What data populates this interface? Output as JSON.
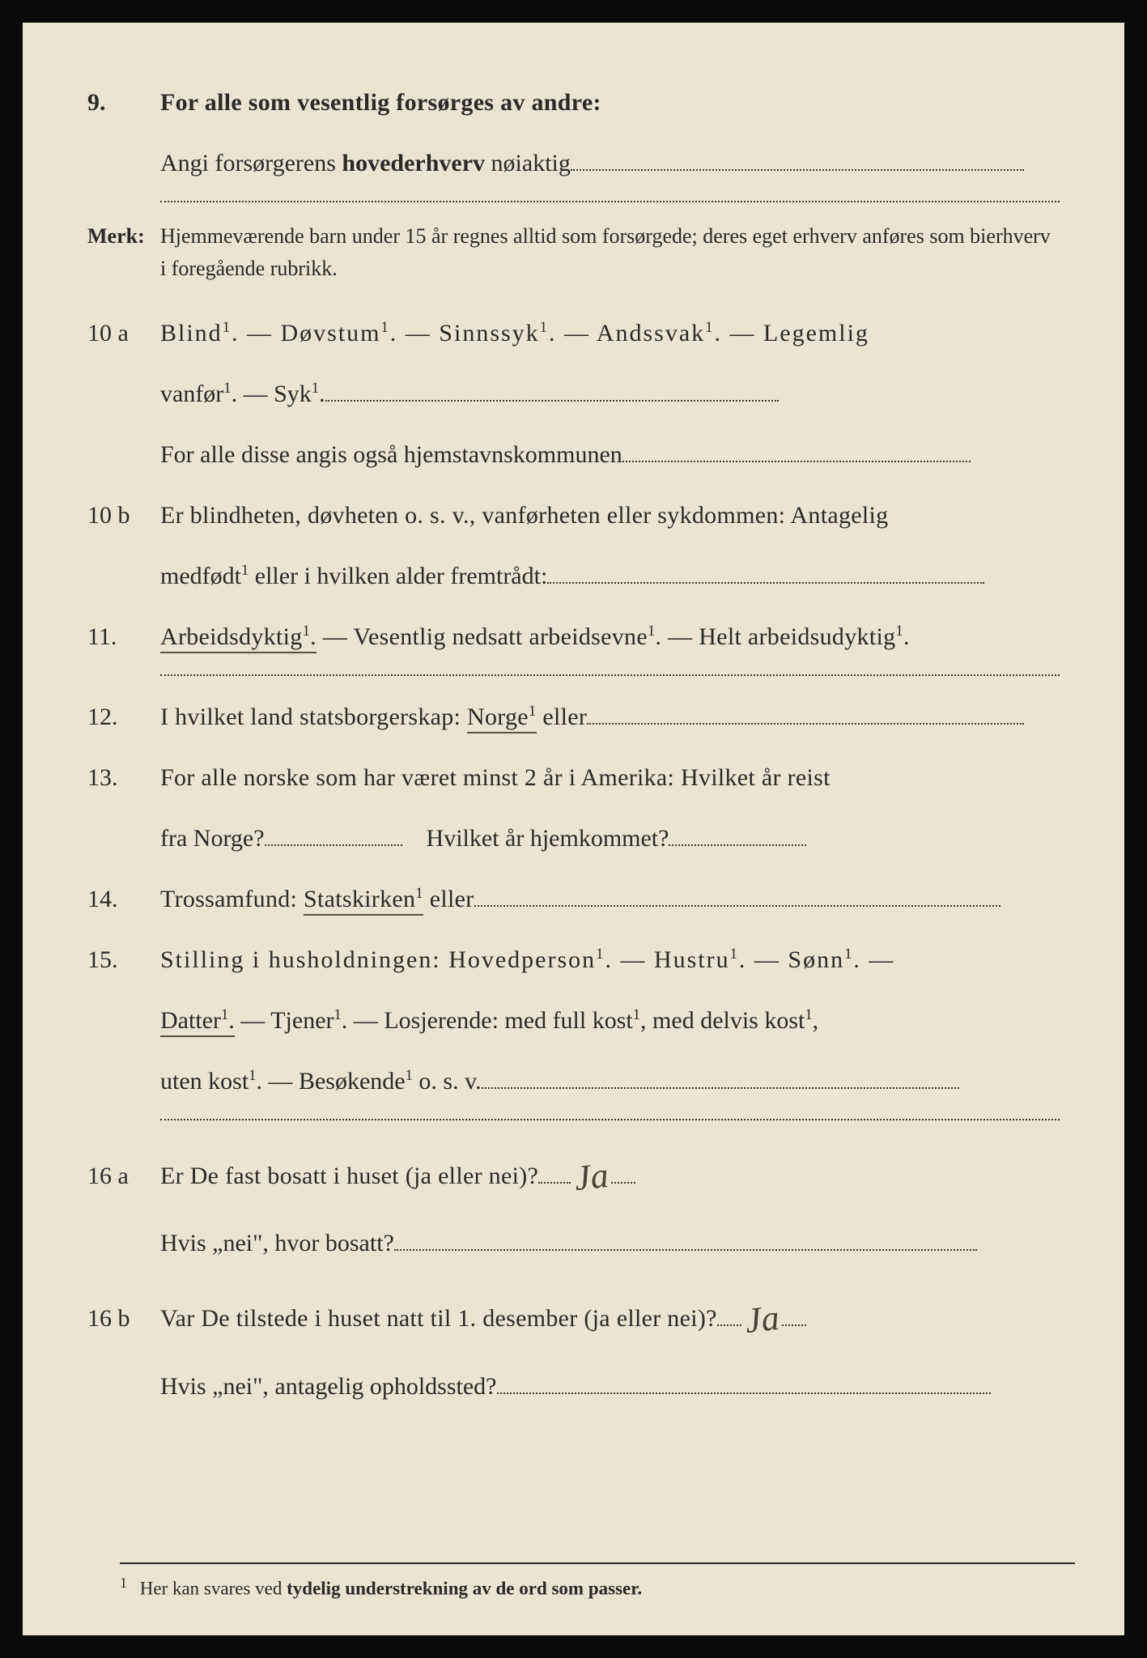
{
  "colors": {
    "paper": "#eae4d4",
    "ink": "#2a2a28",
    "border": "#0a0a0a",
    "hand": "#4a433a",
    "dotted": "#3a3a36"
  },
  "typography": {
    "body_pt": 30,
    "merk_pt": 26,
    "footnote_pt": 23,
    "family": "serif"
  },
  "q9": {
    "num": "9.",
    "line1": "For alle som vesentlig forsørges av andre:",
    "line2_a": "Angi forsørgerens ",
    "line2_b": "hovederhverv",
    "line2_c": " nøiaktig"
  },
  "merk": {
    "label": "Merk:",
    "text": "Hjemmeværende barn under 15 år regnes alltid som forsørgede; deres eget erhverv anføres som bierhverv i foregående rubrikk."
  },
  "q10a": {
    "num": "10 a",
    "opts": "Blind¹.  —  Døvstum¹.  —  Sinnssyk¹.  —  Andssvak¹.  —  Legemlig",
    "opts2_a": "vanfør¹.",
    "opts2_b": " — Syk¹.",
    "line3": "For alle disse angis også hjemstavnskommunen"
  },
  "q10b": {
    "num": "10 b",
    "l1": "Er blindheten, døvheten o. s. v., vanførheten eller sykdommen: Antagelig",
    "l2": "medfødt¹ eller i hvilken alder fremtrådt:"
  },
  "q11": {
    "num": "11.",
    "a": "Arbeidsdyktig¹.",
    "b": " — Vesentlig nedsatt arbeidsevne¹. — Helt arbeidsudyktig¹."
  },
  "q12": {
    "num": "12.",
    "a": "I hvilket land statsborgerskap:  ",
    "b": "Norge¹",
    "c": " eller"
  },
  "q13": {
    "num": "13.",
    "l1": "For alle norske som har været minst 2 år i Amerika: Hvilket år reist",
    "l2a": "fra Norge?",
    "l2b": "Hvilket år hjemkommet?"
  },
  "q14": {
    "num": "14.",
    "a": "Trossamfund:  ",
    "b": "Statskirken¹",
    "c": " eller"
  },
  "q15": {
    "num": "15.",
    "l1": "Stilling i husholdningen:  Hovedperson¹.  —  Hustru¹.  —  Sønn¹.  —",
    "l2a": "Datter¹.",
    "l2b": "  —  Tjener¹. — Losjerende:  med full kost¹, med delvis kost¹,",
    "l3": "uten  kost¹.   —   Besøkende¹  o. s. v."
  },
  "q16a": {
    "num": "16 a",
    "q": "Er De fast bosatt i huset (ja eller nei)?",
    "ans": "Ja",
    "l2": "Hvis „nei\", hvor bosatt?"
  },
  "q16b": {
    "num": "16 b",
    "q": "Var De tilstede i huset natt til 1. desember (ja eller nei)?",
    "ans": "Ja",
    "l2": "Hvis „nei\", antagelig opholdssted?"
  },
  "footnote": {
    "n": "1",
    "a": "Her kan svares ved ",
    "b": "tydelig understrekning av de ord som passer."
  }
}
